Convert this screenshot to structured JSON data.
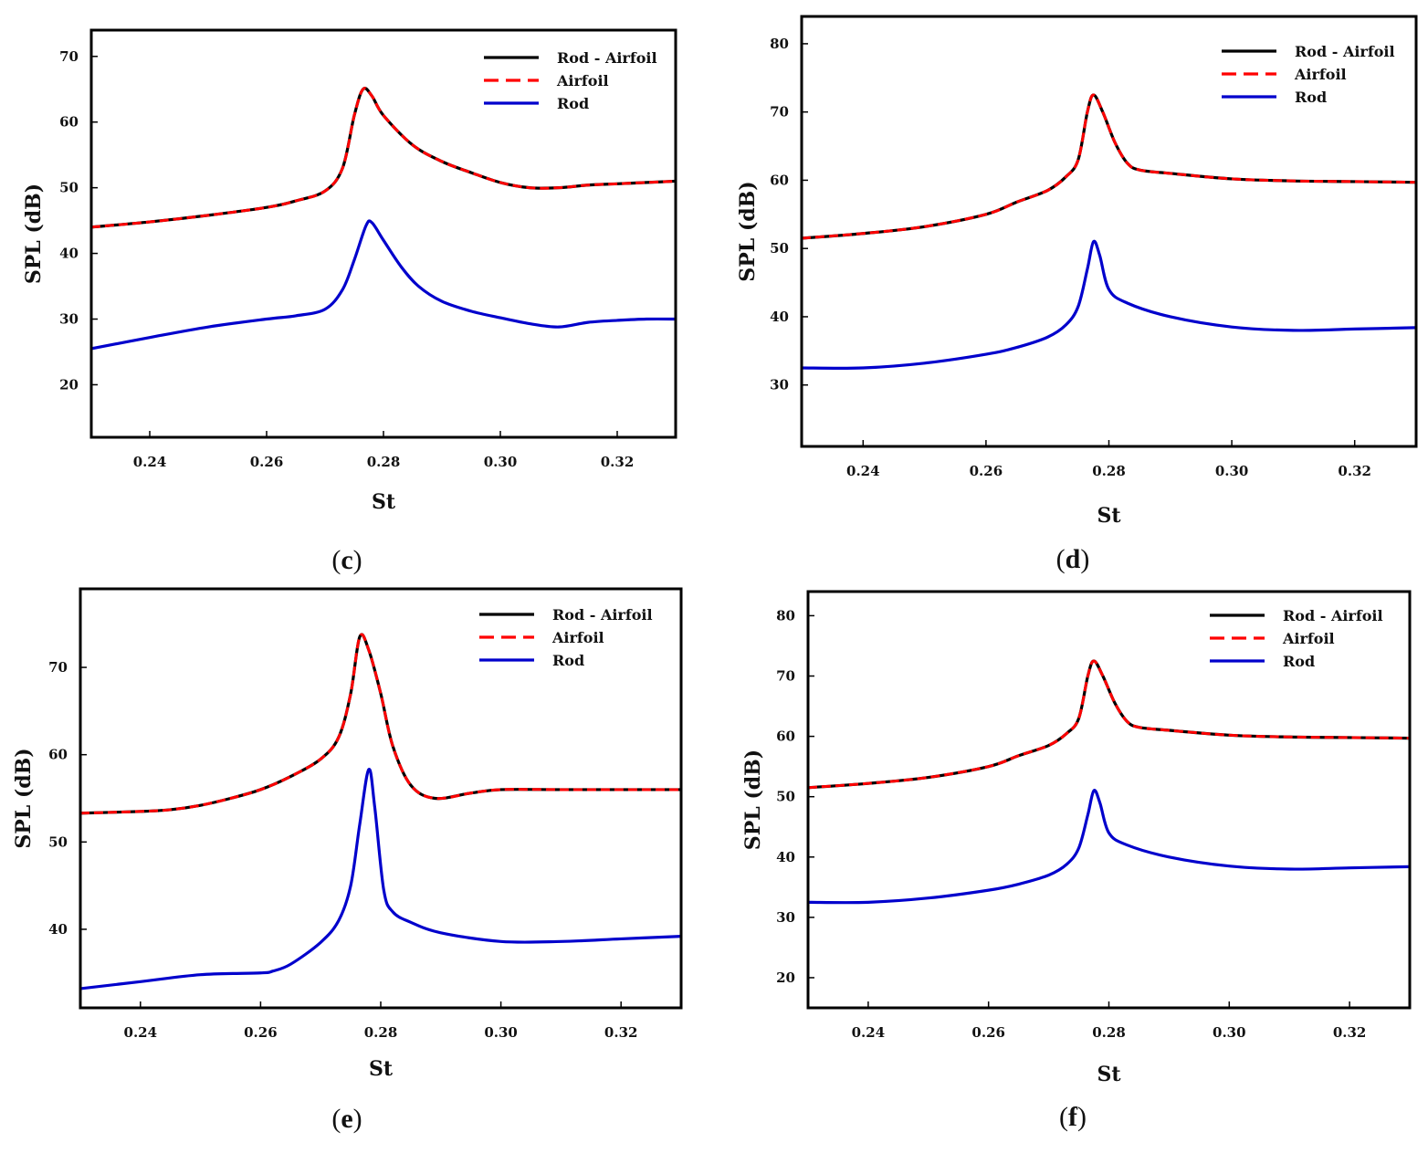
{
  "chart_data": [
    {
      "panel": "c",
      "type": "line",
      "xlabel": "St",
      "ylabel": "SPL (dB)",
      "xlim": [
        0.23,
        0.33
      ],
      "ylim": [
        12,
        74
      ],
      "xticks": [
        0.24,
        0.26,
        0.28,
        0.3,
        0.32
      ],
      "xtick_labels": [
        "0.24",
        "0.26",
        "0.28",
        "0.30",
        "0.32"
      ],
      "yticks": [
        20,
        30,
        40,
        50,
        60,
        70
      ],
      "ytick_labels": [
        "20",
        "30",
        "40",
        "50",
        "60",
        "70"
      ],
      "legend": [
        "Rod - Airfoil",
        "Airfoil",
        "Rod"
      ],
      "caption": {
        "open": "(",
        "letter": "c",
        "close": ")"
      },
      "series": [
        {
          "name": "Rod - Airfoil",
          "color": "#000000",
          "style": "solid",
          "x": [
            0.23,
            0.24,
            0.25,
            0.26,
            0.265,
            0.27,
            0.273,
            0.275,
            0.2765,
            0.278,
            0.28,
            0.285,
            0.29,
            0.295,
            0.3,
            0.305,
            0.31,
            0.315,
            0.32,
            0.325,
            0.33
          ],
          "y": [
            44.0,
            44.8,
            45.8,
            47.0,
            48.0,
            49.5,
            53.0,
            61.0,
            65.0,
            64.0,
            61.0,
            56.5,
            54.0,
            52.3,
            50.8,
            50.0,
            50.0,
            50.4,
            50.6,
            50.8,
            51.0
          ]
        },
        {
          "name": "Airfoil",
          "color": "#ff0000",
          "style": "dashed",
          "x": [
            0.23,
            0.24,
            0.25,
            0.26,
            0.265,
            0.27,
            0.273,
            0.275,
            0.2765,
            0.278,
            0.28,
            0.285,
            0.29,
            0.295,
            0.3,
            0.305,
            0.31,
            0.315,
            0.32,
            0.325,
            0.33
          ],
          "y": [
            44.0,
            44.8,
            45.8,
            47.0,
            48.0,
            49.5,
            53.0,
            61.0,
            65.0,
            64.0,
            61.0,
            56.5,
            54.0,
            52.3,
            50.8,
            50.0,
            50.0,
            50.4,
            50.6,
            50.8,
            51.0
          ]
        },
        {
          "name": "Rod",
          "color": "#0000cc",
          "style": "solid",
          "x": [
            0.23,
            0.24,
            0.25,
            0.26,
            0.265,
            0.27,
            0.273,
            0.275,
            0.277,
            0.278,
            0.28,
            0.283,
            0.286,
            0.29,
            0.295,
            0.3,
            0.305,
            0.31,
            0.315,
            0.32,
            0.325,
            0.33
          ],
          "y": [
            25.5,
            27.2,
            28.8,
            30.0,
            30.5,
            31.5,
            34.5,
            39.0,
            44.2,
            44.7,
            42.0,
            38.0,
            35.0,
            32.7,
            31.2,
            30.2,
            29.3,
            28.8,
            29.5,
            29.8,
            30.0,
            30.0
          ]
        }
      ]
    },
    {
      "panel": "d",
      "type": "line",
      "xlabel": "St",
      "ylabel": "SPL (dB)",
      "xlim": [
        0.23,
        0.33
      ],
      "ylim": [
        21,
        84
      ],
      "xticks": [
        0.24,
        0.26,
        0.28,
        0.3,
        0.32
      ],
      "xtick_labels": [
        "0.24",
        "0.26",
        "0.28",
        "0.30",
        "0.32"
      ],
      "yticks": [
        30,
        40,
        50,
        60,
        70,
        80
      ],
      "ytick_labels": [
        "30",
        "40",
        "50",
        "60",
        "70",
        "80"
      ],
      "legend": [
        "Rod - Airfoil",
        "Airfoil",
        "Rod"
      ],
      "caption": {
        "open": "(",
        "letter": "d",
        "close": ")"
      },
      "series": [
        {
          "name": "Rod - Airfoil",
          "color": "#000000",
          "style": "solid",
          "x": [
            0.23,
            0.24,
            0.25,
            0.26,
            0.265,
            0.27,
            0.273,
            0.275,
            0.2765,
            0.2775,
            0.279,
            0.281,
            0.283,
            0.285,
            0.29,
            0.3,
            0.31,
            0.32,
            0.33
          ],
          "y": [
            51.5,
            52.2,
            53.2,
            55.0,
            56.8,
            58.5,
            60.5,
            63.0,
            70.0,
            72.5,
            70.0,
            65.5,
            62.5,
            61.5,
            61.0,
            60.2,
            59.9,
            59.8,
            59.7
          ]
        },
        {
          "name": "Airfoil",
          "color": "#ff0000",
          "style": "dashed",
          "x": [
            0.23,
            0.24,
            0.25,
            0.26,
            0.265,
            0.27,
            0.273,
            0.275,
            0.2765,
            0.2775,
            0.279,
            0.281,
            0.283,
            0.285,
            0.29,
            0.3,
            0.31,
            0.32,
            0.33
          ],
          "y": [
            51.5,
            52.2,
            53.2,
            55.0,
            56.8,
            58.5,
            60.5,
            63.0,
            70.0,
            72.5,
            70.0,
            65.5,
            62.5,
            61.5,
            61.0,
            60.2,
            59.9,
            59.8,
            59.7
          ]
        },
        {
          "name": "Rod",
          "color": "#0000cc",
          "style": "solid",
          "x": [
            0.23,
            0.24,
            0.25,
            0.26,
            0.265,
            0.27,
            0.273,
            0.275,
            0.2765,
            0.2775,
            0.2785,
            0.28,
            0.283,
            0.29,
            0.3,
            0.31,
            0.32,
            0.33
          ],
          "y": [
            32.5,
            32.5,
            33.2,
            34.5,
            35.5,
            37.0,
            38.8,
            41.5,
            47.0,
            51.0,
            49.0,
            44.0,
            42.0,
            40.0,
            38.5,
            38.0,
            38.2,
            38.4
          ]
        }
      ]
    },
    {
      "panel": "e",
      "type": "line",
      "xlabel": "St",
      "ylabel": "SPL (dB)",
      "xlim": [
        0.23,
        0.33
      ],
      "ylim": [
        31,
        79
      ],
      "xticks": [
        0.24,
        0.26,
        0.28,
        0.3,
        0.32
      ],
      "xtick_labels": [
        "0.24",
        "0.26",
        "0.28",
        "0.30",
        "0.32"
      ],
      "yticks": [
        40,
        50,
        60,
        70
      ],
      "ytick_labels": [
        "40",
        "50",
        "60",
        "70"
      ],
      "legend": [
        "Rod - Airfoil",
        "Airfoil",
        "Rod"
      ],
      "caption": {
        "open": "(",
        "letter": "e",
        "close": ")"
      },
      "series": [
        {
          "name": "Rod - Airfoil",
          "color": "#000000",
          "style": "solid",
          "x": [
            0.23,
            0.24,
            0.245,
            0.25,
            0.255,
            0.26,
            0.265,
            0.27,
            0.273,
            0.275,
            0.2765,
            0.278,
            0.28,
            0.282,
            0.285,
            0.289,
            0.295,
            0.3,
            0.31,
            0.32,
            0.33
          ],
          "y": [
            53.3,
            53.5,
            53.7,
            54.2,
            55.0,
            56.0,
            57.5,
            59.5,
            62.0,
            67.0,
            73.5,
            72.0,
            67.0,
            61.0,
            56.5,
            55.0,
            55.6,
            56.0,
            56.0,
            56.0,
            56.0
          ]
        },
        {
          "name": "Airfoil",
          "color": "#ff0000",
          "style": "dashed",
          "x": [
            0.23,
            0.24,
            0.245,
            0.25,
            0.255,
            0.26,
            0.265,
            0.27,
            0.273,
            0.275,
            0.2765,
            0.278,
            0.28,
            0.282,
            0.285,
            0.289,
            0.295,
            0.3,
            0.31,
            0.32,
            0.33
          ],
          "y": [
            53.3,
            53.5,
            53.7,
            54.2,
            55.0,
            56.0,
            57.5,
            59.5,
            62.0,
            67.0,
            73.5,
            72.0,
            67.0,
            61.0,
            56.5,
            55.0,
            55.6,
            56.0,
            56.0,
            56.0,
            56.0
          ]
        },
        {
          "name": "Rod",
          "color": "#0000cc",
          "style": "solid",
          "x": [
            0.23,
            0.24,
            0.25,
            0.26,
            0.262,
            0.265,
            0.27,
            0.273,
            0.275,
            0.2765,
            0.278,
            0.279,
            0.2805,
            0.282,
            0.285,
            0.29,
            0.3,
            0.31,
            0.32,
            0.33
          ],
          "y": [
            33.2,
            34.0,
            34.8,
            35.0,
            35.2,
            36.0,
            38.5,
            41.0,
            45.0,
            52.0,
            58.3,
            54.0,
            44.5,
            42.0,
            40.8,
            39.6,
            38.6,
            38.6,
            38.9,
            39.2
          ]
        }
      ]
    },
    {
      "panel": "f",
      "type": "line",
      "xlabel": "St",
      "ylabel": "SPL (dB)",
      "xlim": [
        0.23,
        0.33
      ],
      "ylim": [
        15,
        84
      ],
      "xticks": [
        0.24,
        0.26,
        0.28,
        0.3,
        0.32
      ],
      "xtick_labels": [
        "0.24",
        "0.26",
        "0.28",
        "0.30",
        "0.32"
      ],
      "yticks": [
        20,
        30,
        40,
        50,
        60,
        70,
        80
      ],
      "ytick_labels": [
        "20",
        "30",
        "40",
        "50",
        "60",
        "70",
        "80"
      ],
      "legend": [
        "Rod - Airfoil",
        "Airfoil",
        "Rod"
      ],
      "caption": {
        "open": "(",
        "letter": "f",
        "close": ")"
      },
      "series": [
        {
          "name": "Rod - Airfoil",
          "color": "#000000",
          "style": "solid",
          "x": [
            0.23,
            0.24,
            0.25,
            0.26,
            0.265,
            0.27,
            0.273,
            0.275,
            0.2765,
            0.2775,
            0.279,
            0.281,
            0.283,
            0.285,
            0.29,
            0.3,
            0.31,
            0.32,
            0.33
          ],
          "y": [
            51.5,
            52.2,
            53.2,
            55.0,
            56.8,
            58.5,
            60.5,
            63.0,
            70.0,
            72.5,
            70.0,
            65.5,
            62.5,
            61.5,
            61.0,
            60.2,
            59.9,
            59.8,
            59.7
          ]
        },
        {
          "name": "Airfoil",
          "color": "#ff0000",
          "style": "dashed",
          "x": [
            0.23,
            0.24,
            0.25,
            0.26,
            0.265,
            0.27,
            0.273,
            0.275,
            0.2765,
            0.2775,
            0.279,
            0.281,
            0.283,
            0.285,
            0.29,
            0.3,
            0.31,
            0.32,
            0.33
          ],
          "y": [
            51.5,
            52.2,
            53.2,
            55.0,
            56.8,
            58.5,
            60.5,
            63.0,
            70.0,
            72.5,
            70.0,
            65.5,
            62.5,
            61.5,
            61.0,
            60.2,
            59.9,
            59.8,
            59.7
          ]
        },
        {
          "name": "Rod",
          "color": "#0000cc",
          "style": "solid",
          "x": [
            0.23,
            0.24,
            0.25,
            0.26,
            0.265,
            0.27,
            0.273,
            0.275,
            0.2765,
            0.2775,
            0.2785,
            0.28,
            0.283,
            0.29,
            0.3,
            0.31,
            0.32,
            0.33
          ],
          "y": [
            32.5,
            32.5,
            33.2,
            34.5,
            35.5,
            37.0,
            38.8,
            41.5,
            47.0,
            51.0,
            49.0,
            44.0,
            42.0,
            40.0,
            38.5,
            38.0,
            38.2,
            38.4
          ]
        }
      ]
    }
  ]
}
